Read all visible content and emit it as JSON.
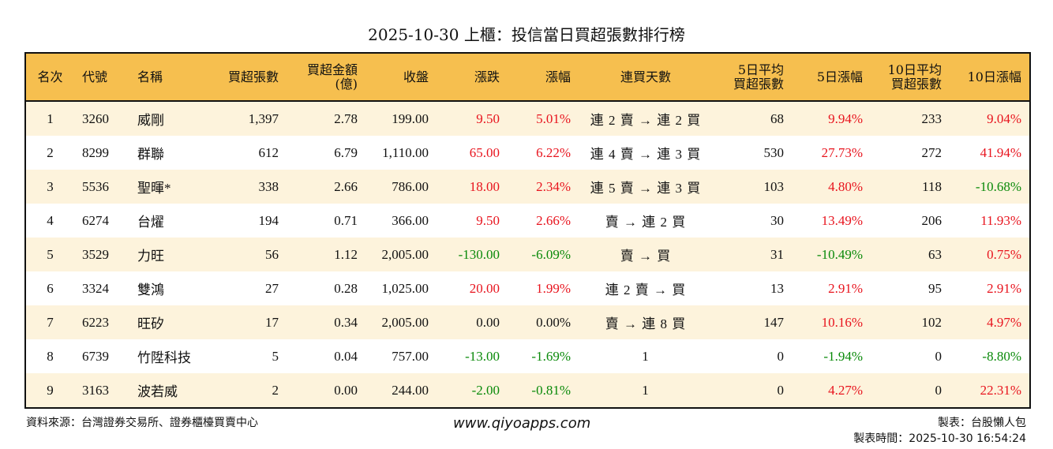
{
  "title": "2025-10-30 上櫃：投信當日買超張數排行榜",
  "colors": {
    "header_bg": "#f6bf4f",
    "row_alt_bg": "#fdf3dc",
    "up": "#e8141e",
    "down": "#0a8a0a"
  },
  "headers": [
    "名次",
    "代號",
    "名稱",
    "買超張數",
    "買超金額\n(億)",
    "收盤",
    "漲跌",
    "漲幅",
    "連買天數",
    "5日平均\n買超張數",
    "5日漲幅",
    "10日平均\n買超張數",
    "10日漲幅"
  ],
  "rows": [
    {
      "rank": "1",
      "code": "3260",
      "name": "威剛",
      "net_lots": "1,397",
      "amount": "2.78",
      "close": "199.00",
      "change": "9.50",
      "pct": "5.01%",
      "streak": "連 2 賣 → 連 2 買",
      "avg5": "68",
      "pct5": "9.94%",
      "avg10": "233",
      "pct10": "9.04%",
      "dir": [
        "up",
        "up",
        "up",
        "up"
      ]
    },
    {
      "rank": "2",
      "code": "8299",
      "name": "群聯",
      "net_lots": "612",
      "amount": "6.79",
      "close": "1,110.00",
      "change": "65.00",
      "pct": "6.22%",
      "streak": "連 4 賣 → 連 3 買",
      "avg5": "530",
      "pct5": "27.73%",
      "avg10": "272",
      "pct10": "41.94%",
      "dir": [
        "up",
        "up",
        "up",
        "up"
      ]
    },
    {
      "rank": "3",
      "code": "5536",
      "name": "聖暉*",
      "net_lots": "338",
      "amount": "2.66",
      "close": "786.00",
      "change": "18.00",
      "pct": "2.34%",
      "streak": "連 5 賣 → 連 3 買",
      "avg5": "103",
      "pct5": "4.80%",
      "avg10": "118",
      "pct10": "-10.68%",
      "dir": [
        "up",
        "up",
        "up",
        "dn"
      ]
    },
    {
      "rank": "4",
      "code": "6274",
      "name": "台燿",
      "net_lots": "194",
      "amount": "0.71",
      "close": "366.00",
      "change": "9.50",
      "pct": "2.66%",
      "streak": "賣 → 連 2 買",
      "avg5": "30",
      "pct5": "13.49%",
      "avg10": "206",
      "pct10": "11.93%",
      "dir": [
        "up",
        "up",
        "up",
        "up"
      ]
    },
    {
      "rank": "5",
      "code": "3529",
      "name": "力旺",
      "net_lots": "56",
      "amount": "1.12",
      "close": "2,005.00",
      "change": "-130.00",
      "pct": "-6.09%",
      "streak": "賣 → 買",
      "avg5": "31",
      "pct5": "-10.49%",
      "avg10": "63",
      "pct10": "0.75%",
      "dir": [
        "dn",
        "dn",
        "dn",
        "up"
      ]
    },
    {
      "rank": "6",
      "code": "3324",
      "name": "雙鴻",
      "net_lots": "27",
      "amount": "0.28",
      "close": "1,025.00",
      "change": "20.00",
      "pct": "1.99%",
      "streak": "連 2 賣 → 買",
      "avg5": "13",
      "pct5": "2.91%",
      "avg10": "95",
      "pct10": "2.91%",
      "dir": [
        "up",
        "up",
        "up",
        "up"
      ]
    },
    {
      "rank": "7",
      "code": "6223",
      "name": "旺矽",
      "net_lots": "17",
      "amount": "0.34",
      "close": "2,005.00",
      "change": "0.00",
      "pct": "0.00%",
      "streak": "賣 → 連 8 買",
      "avg5": "147",
      "pct5": "10.16%",
      "avg10": "102",
      "pct10": "4.97%",
      "dir": [
        "",
        "",
        "up",
        "up"
      ]
    },
    {
      "rank": "8",
      "code": "6739",
      "name": "竹陞科技",
      "net_lots": "5",
      "amount": "0.04",
      "close": "757.00",
      "change": "-13.00",
      "pct": "-1.69%",
      "streak": "1",
      "avg5": "0",
      "pct5": "-1.94%",
      "avg10": "0",
      "pct10": "-8.80%",
      "dir": [
        "dn",
        "dn",
        "dn",
        "dn"
      ]
    },
    {
      "rank": "9",
      "code": "3163",
      "name": "波若威",
      "net_lots": "2",
      "amount": "0.00",
      "close": "244.00",
      "change": "-2.00",
      "pct": "-0.81%",
      "streak": "1",
      "avg5": "0",
      "pct5": "4.27%",
      "avg10": "0",
      "pct10": "22.31%",
      "dir": [
        "dn",
        "dn",
        "up",
        "up"
      ]
    }
  ],
  "footer": {
    "source": "資料來源：台灣證券交易所、證券櫃檯買賣中心",
    "website": "www.qiyoapps.com",
    "maker": "製表：台股懶人包",
    "made_time": "製表時間：2025-10-30 16:54:24"
  }
}
